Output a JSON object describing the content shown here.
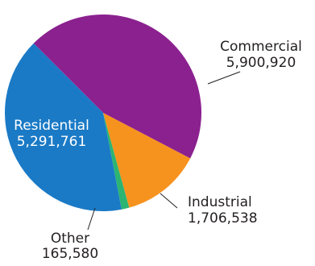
{
  "chart_data": {
    "type": "pie",
    "title": "",
    "slices": [
      {
        "label": "Commercial",
        "value_text": "5,900,920",
        "value": 5900920,
        "color": "#8b218f",
        "label_color": "#231f20"
      },
      {
        "label": "Industrial",
        "value_text": "1,706,538",
        "value": 1706538,
        "color": "#f6931e",
        "label_color": "#231f20"
      },
      {
        "label": "Other",
        "value_text": "165,580",
        "value": 165580,
        "color": "#2cb473",
        "label_color": "#231f20"
      },
      {
        "label": "Residential",
        "value_text": "5,291,761",
        "value": 5291761,
        "color": "#1a7ac6",
        "label_color": "#ffffff"
      }
    ]
  }
}
